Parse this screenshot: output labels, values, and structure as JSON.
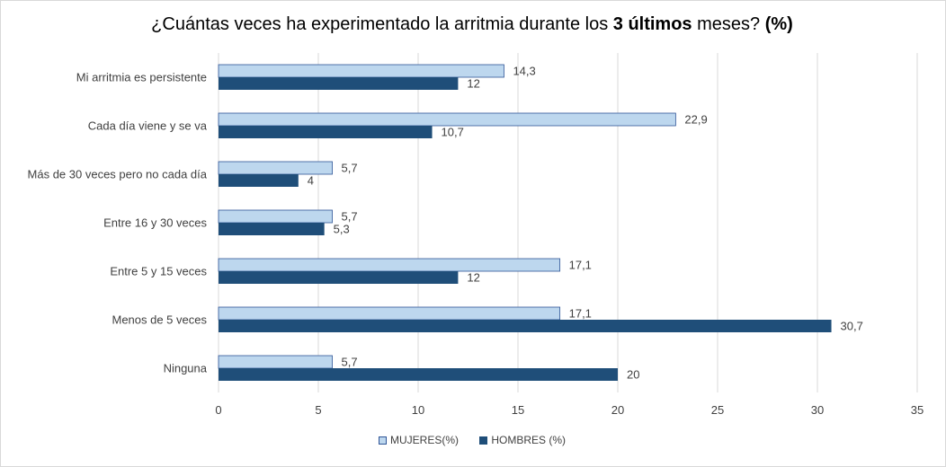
{
  "title": {
    "prefix": "¿Cuántas veces ha experimentado la arritmia durante los ",
    "bold1": "3 últimos",
    "middle": " meses? ",
    "bold2": "(%)"
  },
  "colors": {
    "mujeres": "#bdd7ee",
    "mujeres_border": "#2f5597",
    "hombres": "#1f4e79",
    "grid": "#d9d9d9"
  },
  "chart_data": {
    "type": "bar",
    "orientation": "horizontal",
    "categories": [
      "Mi arritmia es persistente",
      "Cada día viene y se va",
      "Más de 30 veces pero no cada día",
      "Entre 16 y 30 veces",
      "Entre 5 y 15 veces",
      "Menos de 5 veces",
      "Ninguna"
    ],
    "series": [
      {
        "name": "MUJERES(%)",
        "values": [
          14.3,
          22.9,
          5.7,
          5.7,
          17.1,
          17.1,
          5.7
        ],
        "labels": [
          "14,3",
          "22,9",
          "5,7",
          "5,7",
          "17,1",
          "17,1",
          "5,7"
        ]
      },
      {
        "name": "HOMBRES (%)",
        "values": [
          12,
          10.7,
          4,
          5.3,
          12,
          30.7,
          20
        ],
        "labels": [
          "12",
          "10,7",
          "4",
          "5,3",
          "12",
          "30,7",
          "20"
        ]
      }
    ],
    "xlim": [
      0,
      35
    ],
    "xticks": [
      0,
      5,
      10,
      15,
      20,
      25,
      30,
      35
    ],
    "grid": true,
    "legend": "bottom"
  }
}
